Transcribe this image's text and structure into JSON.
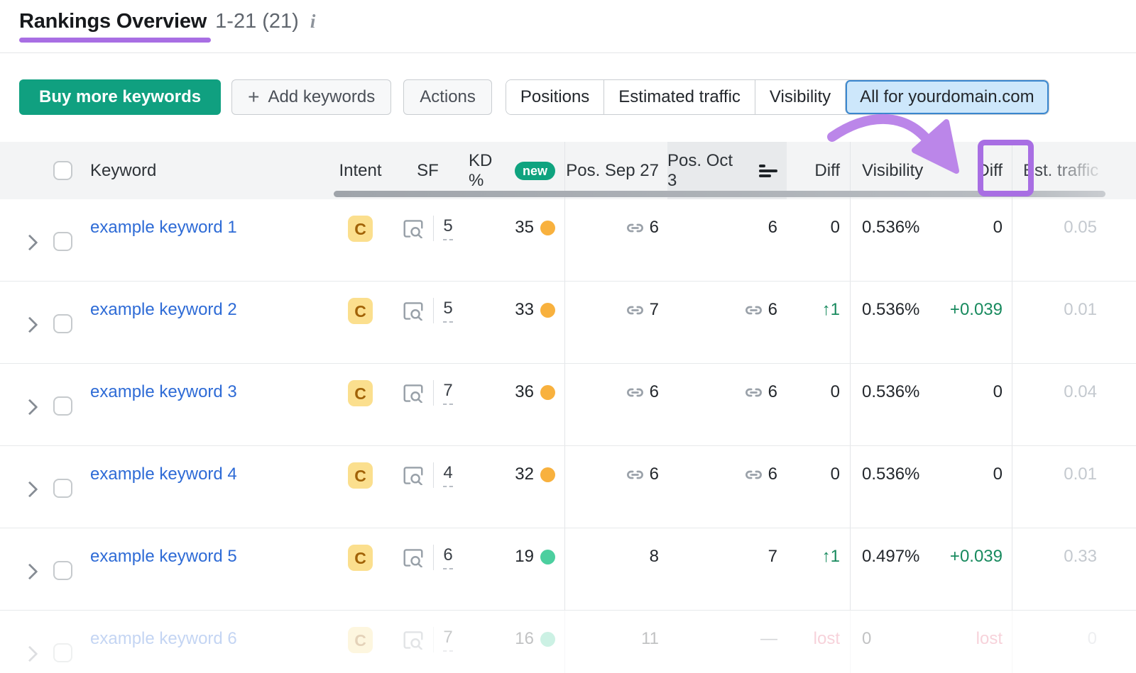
{
  "header": {
    "title": "Rankings Overview",
    "range": "1-21 (21)",
    "info_icon": "i"
  },
  "toolbar": {
    "buy_label": "Buy more keywords",
    "add_label": "Add keywords",
    "actions_label": "Actions",
    "tabs": [
      {
        "label": "Positions",
        "selected": false
      },
      {
        "label": "Estimated traffic",
        "selected": false
      },
      {
        "label": "Visibility",
        "selected": false
      },
      {
        "label": "All for yourdomain.com",
        "selected": true
      }
    ]
  },
  "table": {
    "columns": {
      "keyword": "Keyword",
      "intent": "Intent",
      "sf": "SF",
      "kd": "KD %",
      "kd_badge": "new",
      "pos_prev": "Pos. Sep 27",
      "pos_curr": "Pos. Oct 3",
      "diff": "Diff",
      "visibility": "Visibility",
      "diff2": "Diff",
      "est_traffic": "Est. traffic"
    },
    "rows": [
      {
        "keyword": "example keyword 1",
        "intent": "C",
        "sf": "5",
        "kd": "35",
        "kd_level": "medium",
        "pos_prev": "6",
        "pos_prev_link": true,
        "pos_curr": "6",
        "pos_curr_link": false,
        "diff": "0",
        "diff_type": "zero",
        "visibility": "0.536%",
        "vis_diff": "0",
        "vis_diff_type": "zero",
        "est_traffic": "0.05",
        "faded": false
      },
      {
        "keyword": "example keyword 2",
        "intent": "C",
        "sf": "5",
        "kd": "33",
        "kd_level": "medium",
        "pos_prev": "7",
        "pos_prev_link": true,
        "pos_curr": "6",
        "pos_curr_link": true,
        "diff": "1",
        "diff_type": "up",
        "visibility": "0.536%",
        "vis_diff": "+0.039",
        "vis_diff_type": "up",
        "est_traffic": "0.01",
        "faded": false
      },
      {
        "keyword": "example keyword 3",
        "intent": "C",
        "sf": "7",
        "kd": "36",
        "kd_level": "medium",
        "pos_prev": "6",
        "pos_prev_link": true,
        "pos_curr": "6",
        "pos_curr_link": true,
        "diff": "0",
        "diff_type": "zero",
        "visibility": "0.536%",
        "vis_diff": "0",
        "vis_diff_type": "zero",
        "est_traffic": "0.04",
        "faded": false
      },
      {
        "keyword": "example keyword 4",
        "intent": "C",
        "sf": "4",
        "kd": "32",
        "kd_level": "medium",
        "pos_prev": "6",
        "pos_prev_link": true,
        "pos_curr": "6",
        "pos_curr_link": true,
        "diff": "0",
        "diff_type": "zero",
        "visibility": "0.536%",
        "vis_diff": "0",
        "vis_diff_type": "zero",
        "est_traffic": "0.01",
        "faded": false
      },
      {
        "keyword": "example keyword 5",
        "intent": "C",
        "sf": "6",
        "kd": "19",
        "kd_level": "easy",
        "pos_prev": "8",
        "pos_prev_link": false,
        "pos_curr": "7",
        "pos_curr_link": false,
        "diff": "1",
        "diff_type": "up",
        "visibility": "0.497%",
        "vis_diff": "+0.039",
        "vis_diff_type": "up",
        "est_traffic": "0.33",
        "faded": false
      },
      {
        "keyword": "example keyword 6",
        "intent": "C",
        "sf": "7",
        "kd": "16",
        "kd_level": "easy",
        "pos_prev": "11",
        "pos_prev_link": false,
        "pos_curr": "—",
        "pos_curr_link": false,
        "diff": "lost",
        "diff_type": "lost",
        "visibility": "0",
        "vis_diff": "lost",
        "vis_diff_type": "lost",
        "est_traffic": "0",
        "faded": true
      }
    ]
  },
  "icons": {
    "plus": "+",
    "up_arrow": "↑",
    "chevron": "›",
    "info": "i"
  },
  "colors": {
    "accent_purple": "#a86ee3",
    "arrow_purple": "#bb86e9",
    "green_button": "#10a080",
    "selected_tab_bg": "#cde7fb",
    "selected_tab_border": "#3a87cf",
    "link_blue": "#2e6bd6",
    "kd_orange": "#f8b13e",
    "kd_green": "#4ccf9f",
    "diff_green": "#188a5e",
    "lost_red": "#e3607e",
    "intent_bg": "#fbdf8e",
    "intent_text": "#a16207",
    "new_badge_bg": "#0fa37f",
    "est_gray": "#c4c9cf"
  }
}
